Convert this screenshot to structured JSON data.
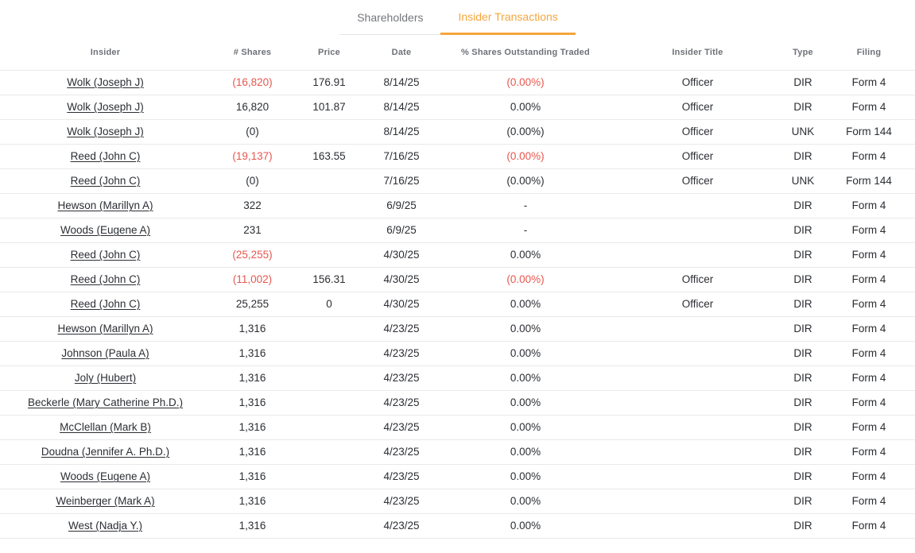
{
  "tabs": {
    "shareholders": {
      "label": "Shareholders",
      "active": false
    },
    "insider_transactions": {
      "label": "Insider Transactions",
      "active": true
    }
  },
  "colors": {
    "accent_orange": "#f4a63d",
    "negative_red": "#e8564e"
  },
  "table": {
    "columns": [
      {
        "key": "insider",
        "label": "Insider"
      },
      {
        "key": "shares",
        "label": "# Shares"
      },
      {
        "key": "price",
        "label": "Price"
      },
      {
        "key": "date",
        "label": "Date"
      },
      {
        "key": "pct_traded",
        "label": "% Shares Outstanding Traded"
      },
      {
        "key": "insider_title",
        "label": "Insider Title"
      },
      {
        "key": "type",
        "label": "Type"
      },
      {
        "key": "filing",
        "label": "Filing"
      }
    ],
    "rows": [
      {
        "insider": "Wolk (Joseph J)",
        "shares": "(16,820)",
        "shares_negative": true,
        "price": "176.91",
        "date": "8/14/25",
        "pct_traded": "(0.00%)",
        "pct_negative": true,
        "insider_title": "Officer",
        "type": "DIR",
        "filing": "Form 4"
      },
      {
        "insider": "Wolk (Joseph J)",
        "shares": "16,820",
        "shares_negative": false,
        "price": "101.87",
        "date": "8/14/25",
        "pct_traded": "0.00%",
        "pct_negative": false,
        "insider_title": "Officer",
        "type": "DIR",
        "filing": "Form 4"
      },
      {
        "insider": "Wolk (Joseph J)",
        "shares": "(0)",
        "shares_negative": false,
        "price": "",
        "date": "8/14/25",
        "pct_traded": "(0.00%)",
        "pct_negative": false,
        "insider_title": "Officer",
        "type": "UNK",
        "filing": "Form 144"
      },
      {
        "insider": "Reed (John C)",
        "shares": "(19,137)",
        "shares_negative": true,
        "price": "163.55",
        "date": "7/16/25",
        "pct_traded": "(0.00%)",
        "pct_negative": true,
        "insider_title": "Officer",
        "type": "DIR",
        "filing": "Form 4"
      },
      {
        "insider": "Reed (John C)",
        "shares": "(0)",
        "shares_negative": false,
        "price": "",
        "date": "7/16/25",
        "pct_traded": "(0.00%)",
        "pct_negative": false,
        "insider_title": "Officer",
        "type": "UNK",
        "filing": "Form 144"
      },
      {
        "insider": "Hewson (Marillyn A)",
        "shares": "322",
        "shares_negative": false,
        "price": "",
        "date": "6/9/25",
        "pct_traded": "-",
        "pct_negative": false,
        "insider_title": "",
        "type": "DIR",
        "filing": "Form 4"
      },
      {
        "insider": "Woods (Eugene A)",
        "shares": "231",
        "shares_negative": false,
        "price": "",
        "date": "6/9/25",
        "pct_traded": "-",
        "pct_negative": false,
        "insider_title": "",
        "type": "DIR",
        "filing": "Form 4"
      },
      {
        "insider": "Reed (John C)",
        "shares": "(25,255)",
        "shares_negative": true,
        "price": "",
        "date": "4/30/25",
        "pct_traded": "0.00%",
        "pct_negative": false,
        "insider_title": "",
        "type": "DIR",
        "filing": "Form 4"
      },
      {
        "insider": "Reed (John C)",
        "shares": "(11,002)",
        "shares_negative": true,
        "price": "156.31",
        "date": "4/30/25",
        "pct_traded": "(0.00%)",
        "pct_negative": true,
        "insider_title": "Officer",
        "type": "DIR",
        "filing": "Form 4"
      },
      {
        "insider": "Reed (John C)",
        "shares": "25,255",
        "shares_negative": false,
        "price": "0",
        "date": "4/30/25",
        "pct_traded": "0.00%",
        "pct_negative": false,
        "insider_title": "Officer",
        "type": "DIR",
        "filing": "Form 4"
      },
      {
        "insider": "Hewson (Marillyn A)",
        "shares": "1,316",
        "shares_negative": false,
        "price": "",
        "date": "4/23/25",
        "pct_traded": "0.00%",
        "pct_negative": false,
        "insider_title": "",
        "type": "DIR",
        "filing": "Form 4"
      },
      {
        "insider": "Johnson (Paula A)",
        "shares": "1,316",
        "shares_negative": false,
        "price": "",
        "date": "4/23/25",
        "pct_traded": "0.00%",
        "pct_negative": false,
        "insider_title": "",
        "type": "DIR",
        "filing": "Form 4"
      },
      {
        "insider": "Joly (Hubert)",
        "shares": "1,316",
        "shares_negative": false,
        "price": "",
        "date": "4/23/25",
        "pct_traded": "0.00%",
        "pct_negative": false,
        "insider_title": "",
        "type": "DIR",
        "filing": "Form 4"
      },
      {
        "insider": "Beckerle (Mary Catherine Ph.D.)",
        "shares": "1,316",
        "shares_negative": false,
        "price": "",
        "date": "4/23/25",
        "pct_traded": "0.00%",
        "pct_negative": false,
        "insider_title": "",
        "type": "DIR",
        "filing": "Form 4"
      },
      {
        "insider": "McClellan (Mark B)",
        "shares": "1,316",
        "shares_negative": false,
        "price": "",
        "date": "4/23/25",
        "pct_traded": "0.00%",
        "pct_negative": false,
        "insider_title": "",
        "type": "DIR",
        "filing": "Form 4"
      },
      {
        "insider": "Doudna (Jennifer A. Ph.D.)",
        "shares": "1,316",
        "shares_negative": false,
        "price": "",
        "date": "4/23/25",
        "pct_traded": "0.00%",
        "pct_negative": false,
        "insider_title": "",
        "type": "DIR",
        "filing": "Form 4"
      },
      {
        "insider": "Woods (Eugene A)",
        "shares": "1,316",
        "shares_negative": false,
        "price": "",
        "date": "4/23/25",
        "pct_traded": "0.00%",
        "pct_negative": false,
        "insider_title": "",
        "type": "DIR",
        "filing": "Form 4"
      },
      {
        "insider": "Weinberger (Mark A)",
        "shares": "1,316",
        "shares_negative": false,
        "price": "",
        "date": "4/23/25",
        "pct_traded": "0.00%",
        "pct_negative": false,
        "insider_title": "",
        "type": "DIR",
        "filing": "Form 4"
      },
      {
        "insider": "West (Nadja Y.)",
        "shares": "1,316",
        "shares_negative": false,
        "price": "",
        "date": "4/23/25",
        "pct_traded": "0.00%",
        "pct_negative": false,
        "insider_title": "",
        "type": "DIR",
        "filing": "Form 4"
      }
    ]
  }
}
